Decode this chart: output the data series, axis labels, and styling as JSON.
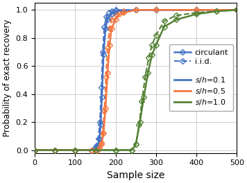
{
  "xlabel": "Sample size",
  "ylabel": "Probability of exact recovery",
  "xlim": [
    0,
    500
  ],
  "ylim": [
    -0.02,
    1.05
  ],
  "xticks": [
    0,
    100,
    200,
    300,
    400,
    500
  ],
  "yticks": [
    0.0,
    0.2,
    0.4,
    0.6,
    0.8,
    1.0
  ],
  "circ_s01_x": [
    0,
    50,
    100,
    140,
    150,
    155,
    160,
    163,
    166,
    170,
    175,
    180,
    190,
    200,
    250,
    300,
    400,
    500
  ],
  "circ_s01_y": [
    0.0,
    0.0,
    0.0,
    0.0,
    0.01,
    0.03,
    0.08,
    0.18,
    0.38,
    0.68,
    0.87,
    0.93,
    0.97,
    0.99,
    1.0,
    1.0,
    1.0,
    1.0
  ],
  "circ_s05_x": [
    0,
    50,
    100,
    140,
    150,
    155,
    160,
    165,
    170,
    175,
    180,
    185,
    190,
    200,
    210,
    220,
    250,
    300,
    400,
    500
  ],
  "circ_s05_y": [
    0.0,
    0.0,
    0.0,
    0.0,
    0.0,
    0.0,
    0.01,
    0.04,
    0.12,
    0.3,
    0.55,
    0.75,
    0.87,
    0.93,
    0.97,
    0.98,
    1.0,
    1.0,
    1.0,
    1.0
  ],
  "circ_s10_x": [
    0,
    50,
    100,
    150,
    200,
    240,
    250,
    260,
    270,
    280,
    290,
    300,
    320,
    350,
    400,
    450,
    500
  ],
  "circ_s10_y": [
    0.0,
    0.0,
    0.0,
    0.0,
    0.0,
    0.0,
    0.04,
    0.2,
    0.38,
    0.55,
    0.68,
    0.75,
    0.88,
    0.93,
    0.97,
    0.99,
    1.0
  ],
  "iid_s01_x": [
    0,
    50,
    100,
    140,
    148,
    153,
    157,
    161,
    165,
    168,
    172,
    177,
    183,
    190,
    200,
    250,
    300,
    400,
    500
  ],
  "iid_s01_y": [
    0.0,
    0.0,
    0.0,
    0.0,
    0.01,
    0.03,
    0.08,
    0.2,
    0.45,
    0.7,
    0.88,
    0.95,
    0.98,
    0.99,
    1.0,
    1.0,
    1.0,
    1.0,
    1.0
  ],
  "iid_s05_x": [
    0,
    50,
    100,
    140,
    150,
    155,
    160,
    165,
    168,
    172,
    176,
    180,
    185,
    190,
    200,
    220,
    250,
    300,
    400,
    500
  ],
  "iid_s05_y": [
    0.0,
    0.0,
    0.0,
    0.0,
    0.0,
    0.0,
    0.01,
    0.05,
    0.12,
    0.28,
    0.52,
    0.73,
    0.87,
    0.93,
    0.97,
    0.99,
    1.0,
    1.0,
    1.0,
    1.0
  ],
  "iid_s10_x": [
    0,
    50,
    100,
    150,
    200,
    240,
    250,
    258,
    265,
    273,
    282,
    290,
    300,
    320,
    350,
    400,
    450,
    500
  ],
  "iid_s10_y": [
    0.0,
    0.0,
    0.0,
    0.0,
    0.0,
    0.0,
    0.04,
    0.18,
    0.35,
    0.52,
    0.66,
    0.75,
    0.82,
    0.92,
    0.96,
    0.98,
    0.99,
    1.0
  ],
  "color_s01": "#4472c4",
  "color_s05": "#f4763e",
  "color_s10": "#548235",
  "figsize": [
    3.56,
    2.64
  ],
  "dpi": 100
}
